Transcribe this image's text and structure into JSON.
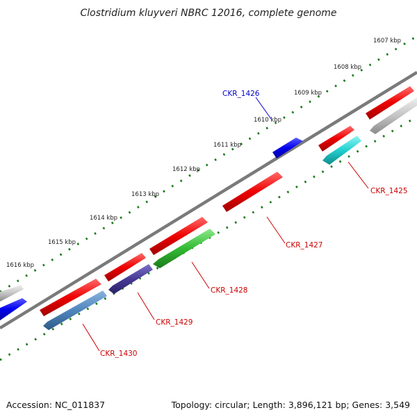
{
  "title": "Clostridium kluyveri NBRC 12016, complete genome",
  "footer": {
    "accession": "Accession: NC_011837",
    "topology": "Topology: circular; Length: 3,896,121 bp; Genes: 3,549"
  },
  "colors": {
    "backbone": "#7a7a7a",
    "tick": "#1a7a1a",
    "label_red": "#cc0000",
    "label_blue": "#0000cc"
  },
  "scale_labels": [
    "1607 kbp",
    "1608 kbp",
    "1609 kbp",
    "1610 kbp",
    "1611 kbp",
    "1612 kbp",
    "1613 kbp",
    "1614 kbp",
    "1615 kbp",
    "1616 kbp"
  ],
  "gene_labels": [
    {
      "text": "CKR_1426",
      "color": "#0000cc"
    },
    {
      "text": "CKR_1425",
      "color": "#cc0000"
    },
    {
      "text": "CKR_1427",
      "color": "#cc0000"
    },
    {
      "text": "CKR_1428",
      "color": "#cc0000"
    },
    {
      "text": "CKR_1429",
      "color": "#cc0000"
    },
    {
      "text": "CKR_1430",
      "color": "#cc0000"
    }
  ]
}
